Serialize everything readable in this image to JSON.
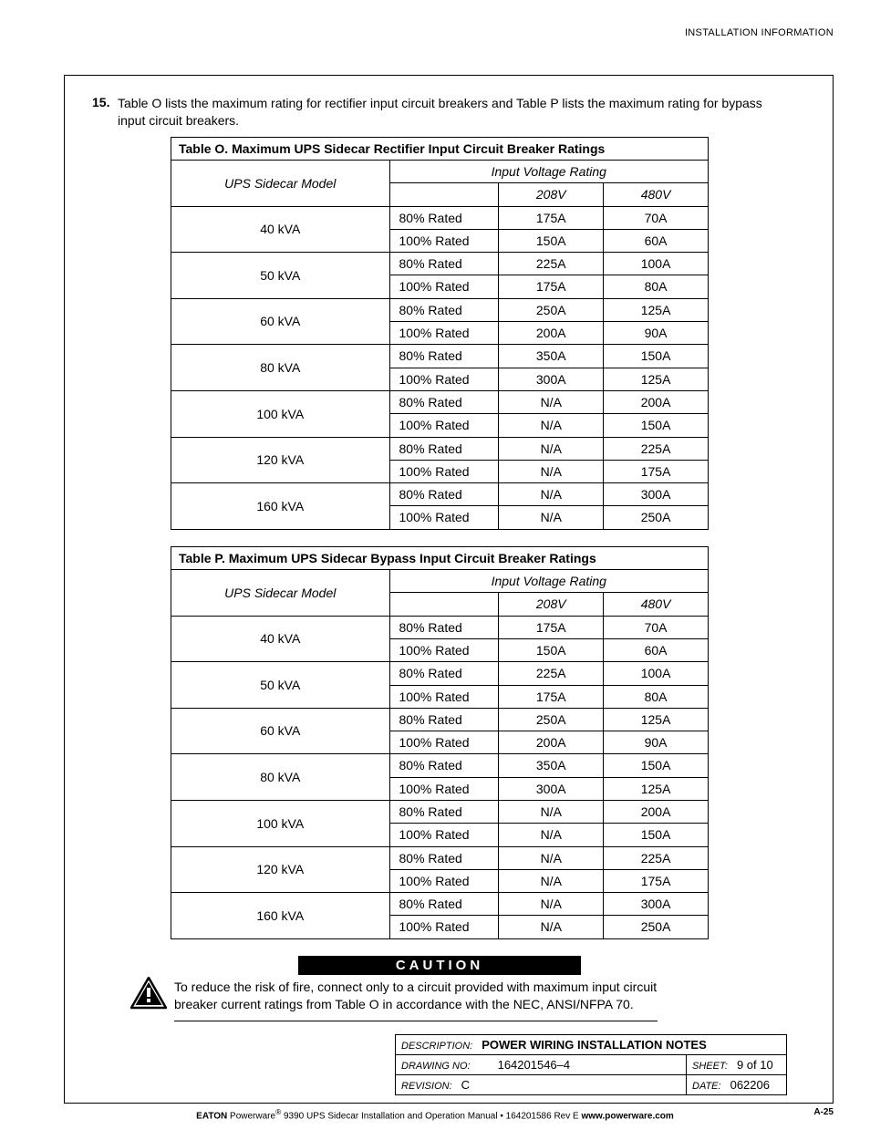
{
  "header": {
    "right": "INSTALLATION INFORMATION"
  },
  "intro": {
    "num": "15.",
    "text": "Table O lists the maximum rating for rectifier input circuit breakers and Table P lists the maximum rating for bypass input circuit breakers."
  },
  "tableO": {
    "title": "Table O. Maximum UPS Sidecar Rectifier Input Circuit Breaker Ratings",
    "model_header": "UPS Sidecar Model",
    "ivr_header": "Input Voltage Rating",
    "v1": "208V",
    "v2": "480V",
    "rows": [
      {
        "model": "40 kVA",
        "r1": "80% Rated",
        "a1": "175A",
        "b1": "70A",
        "r2": "100% Rated",
        "a2": "150A",
        "b2": "60A"
      },
      {
        "model": "50 kVA",
        "r1": "80% Rated",
        "a1": "225A",
        "b1": "100A",
        "r2": "100% Rated",
        "a2": "175A",
        "b2": "80A"
      },
      {
        "model": "60 kVA",
        "r1": "80% Rated",
        "a1": "250A",
        "b1": "125A",
        "r2": "100% Rated",
        "a2": "200A",
        "b2": "90A"
      },
      {
        "model": "80 kVA",
        "r1": "80% Rated",
        "a1": "350A",
        "b1": "150A",
        "r2": "100% Rated",
        "a2": "300A",
        "b2": "125A"
      },
      {
        "model": "100 kVA",
        "r1": "80% Rated",
        "a1": "N/A",
        "b1": "200A",
        "r2": "100% Rated",
        "a2": "N/A",
        "b2": "150A"
      },
      {
        "model": "120 kVA",
        "r1": "80% Rated",
        "a1": "N/A",
        "b1": "225A",
        "r2": "100% Rated",
        "a2": "N/A",
        "b2": "175A"
      },
      {
        "model": "160 kVA",
        "r1": "80% Rated",
        "a1": "N/A",
        "b1": "300A",
        "r2": "100% Rated",
        "a2": "N/A",
        "b2": "250A"
      }
    ]
  },
  "tableP": {
    "title": "Table P. Maximum UPS Sidecar Bypass Input Circuit Breaker Ratings",
    "model_header": "UPS Sidecar Model",
    "ivr_header": "Input Voltage Rating",
    "v1": "208V",
    "v2": "480V",
    "rows": [
      {
        "model": "40 kVA",
        "r1": "80% Rated",
        "a1": "175A",
        "b1": "70A",
        "r2": "100% Rated",
        "a2": "150A",
        "b2": "60A"
      },
      {
        "model": "50 kVA",
        "r1": "80% Rated",
        "a1": "225A",
        "b1": "100A",
        "r2": "100% Rated",
        "a2": "175A",
        "b2": "80A"
      },
      {
        "model": "60 kVA",
        "r1": "80% Rated",
        "a1": "250A",
        "b1": "125A",
        "r2": "100% Rated",
        "a2": "200A",
        "b2": "90A"
      },
      {
        "model": "80 kVA",
        "r1": "80% Rated",
        "a1": "350A",
        "b1": "150A",
        "r2": "100% Rated",
        "a2": "300A",
        "b2": "125A"
      },
      {
        "model": "100 kVA",
        "r1": "80% Rated",
        "a1": "N/A",
        "b1": "200A",
        "r2": "100% Rated",
        "a2": "N/A",
        "b2": "150A"
      },
      {
        "model": "120 kVA",
        "r1": "80% Rated",
        "a1": "N/A",
        "b1": "225A",
        "r2": "100% Rated",
        "a2": "N/A",
        "b2": "175A"
      },
      {
        "model": "160 kVA",
        "r1": "80% Rated",
        "a1": "N/A",
        "b1": "300A",
        "r2": "100% Rated",
        "a2": "N/A",
        "b2": "250A"
      }
    ]
  },
  "caution": {
    "label": "CAUTION",
    "text": "To reduce the risk of fire, connect only to a circuit provided with maximum input circuit breaker current ratings from Table O in accordance with the NEC, ANSI/NFPA 70."
  },
  "title_block": {
    "desc_label": "DESCRIPTION:",
    "desc_value": "POWER WIRING INSTALLATION NOTES",
    "dwg_label": "DRAWING NO:",
    "dwg_value": "164201546–4",
    "sheet_label": "SHEET:",
    "sheet_value": "9 of 10",
    "rev_label": "REVISION:",
    "rev_value": "C",
    "date_label": "DATE:",
    "date_value": "062206"
  },
  "footer": {
    "brand": "EATON",
    "text1": " Powerware",
    "reg": "®",
    "text2": " 9390 UPS Sidecar Installation and Operation Manual  •  164201586 Rev E ",
    "url": "www.powerware.com",
    "page_num": "A-25"
  }
}
